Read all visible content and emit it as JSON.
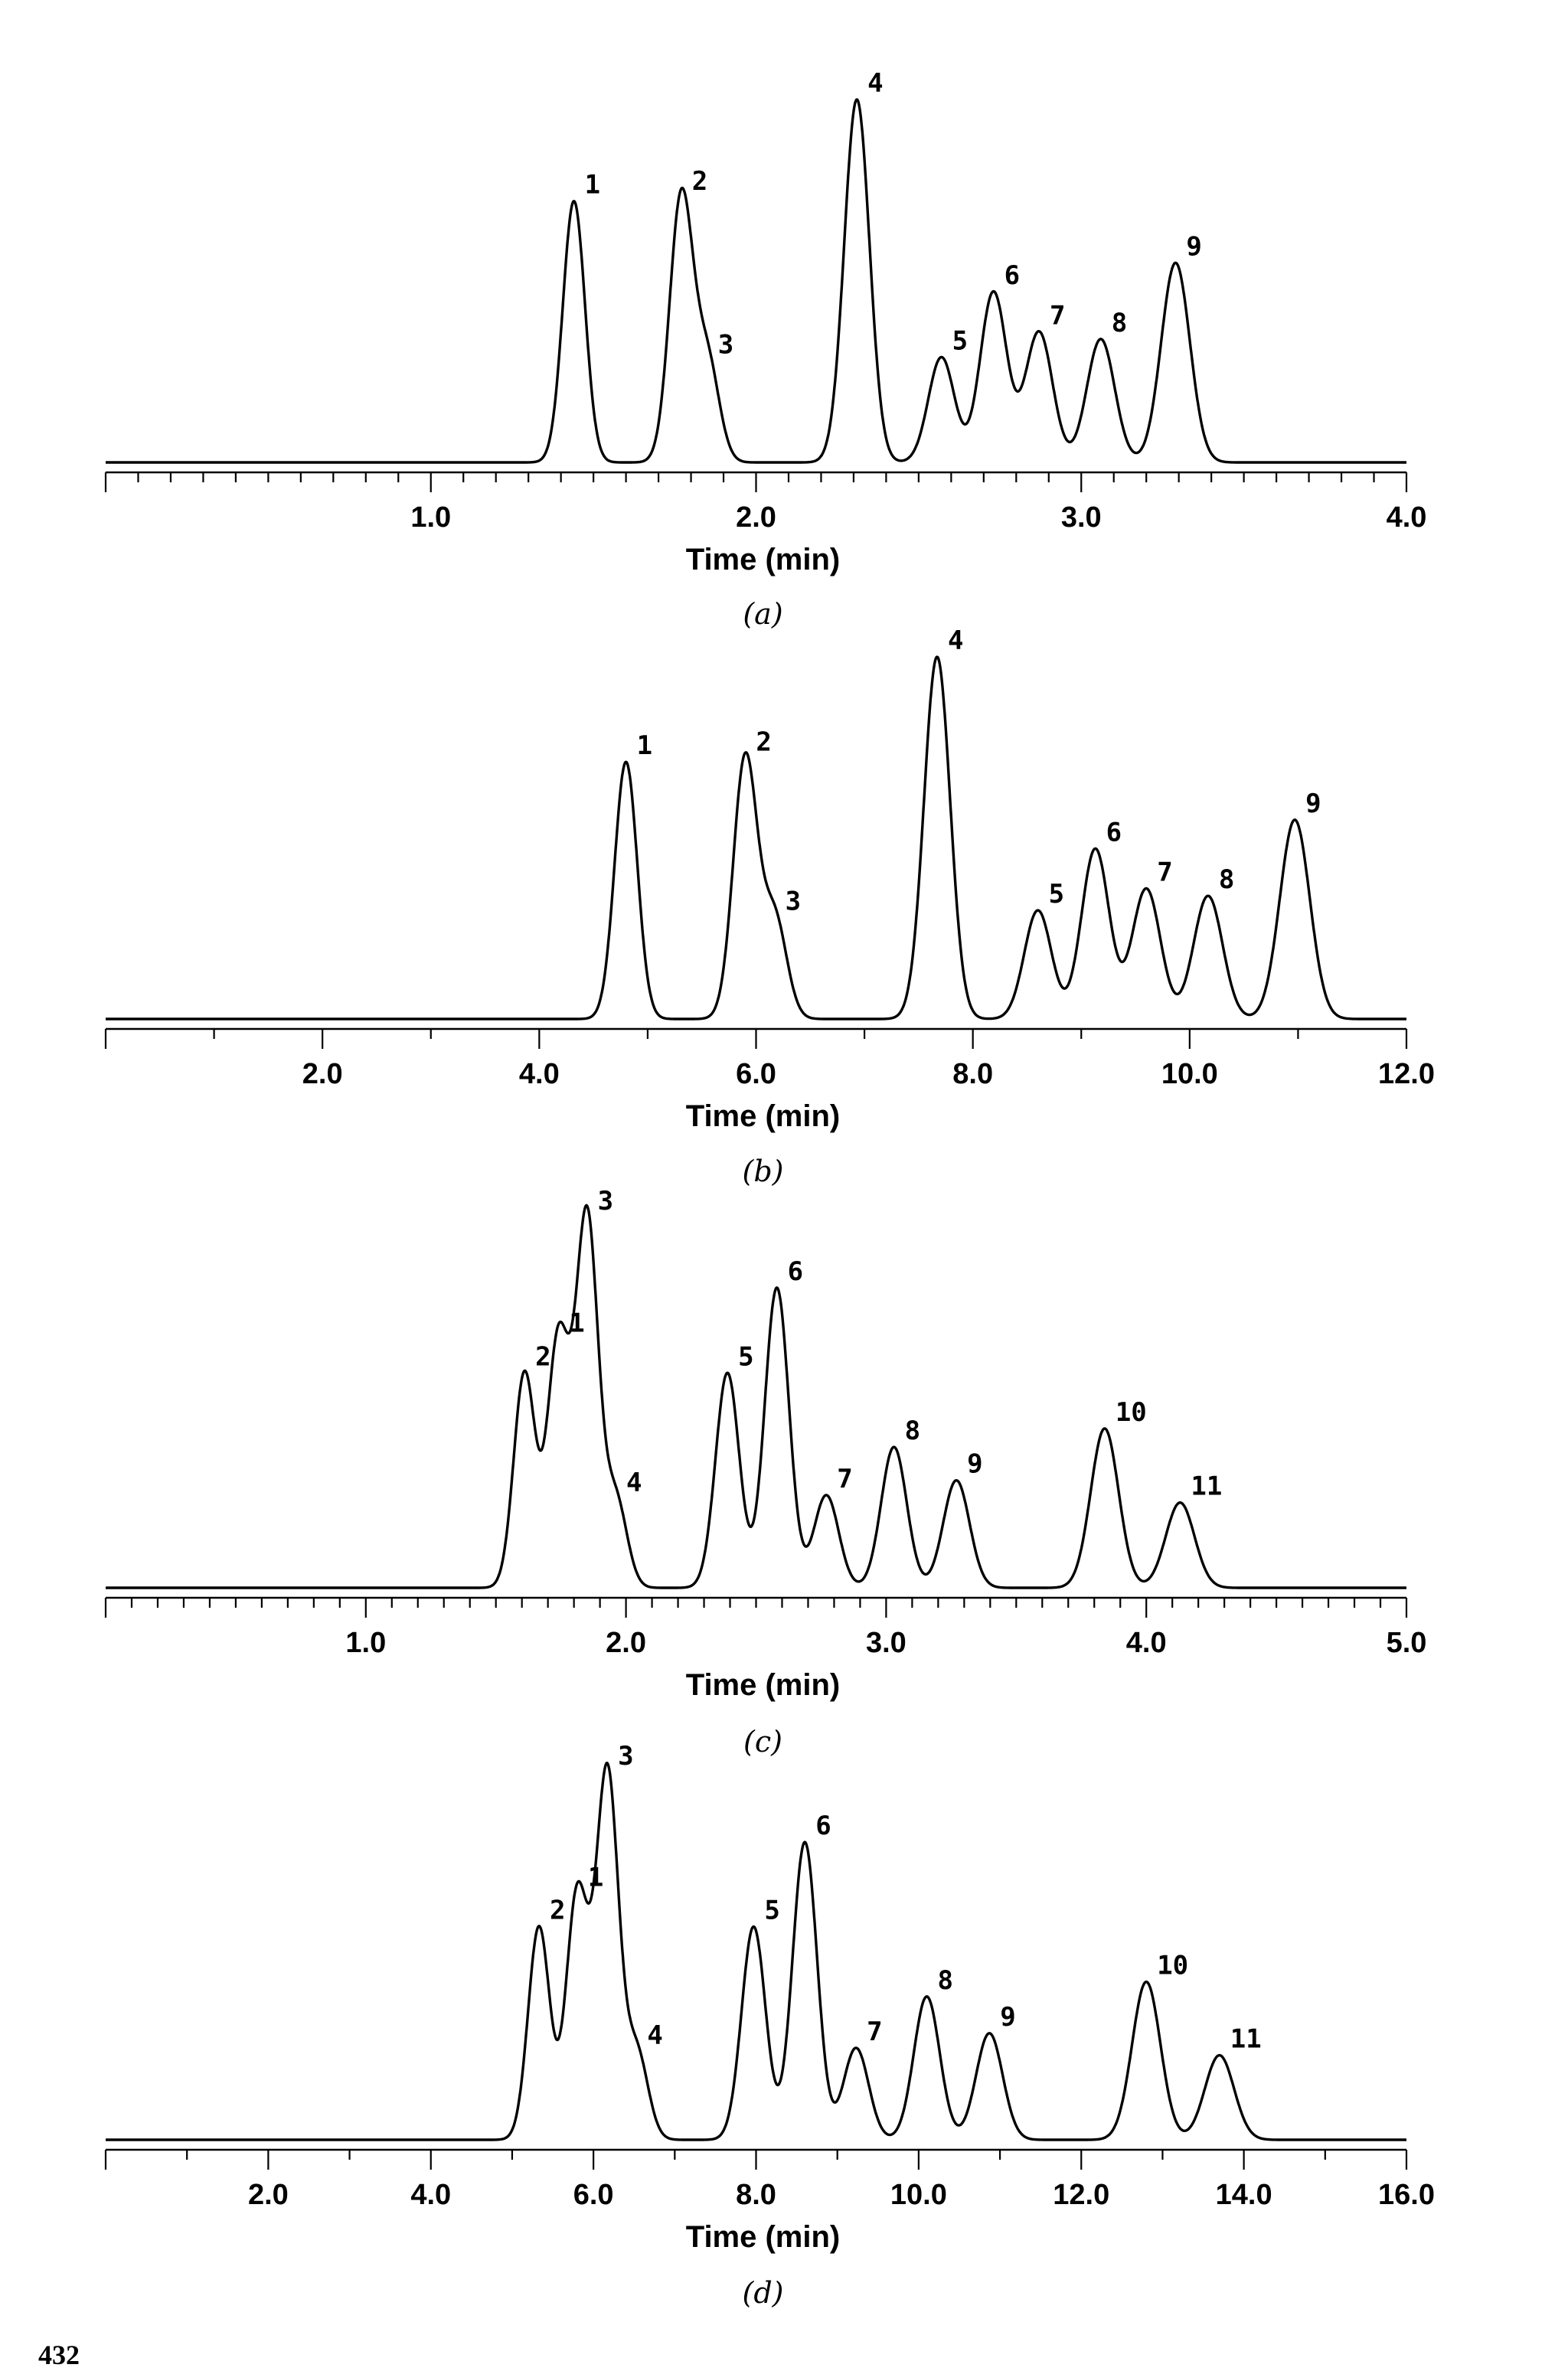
{
  "chart_data": [
    {
      "type": "line",
      "panel": "a",
      "caption": "(a)",
      "xlabel": "Time (min)",
      "ylabel": "",
      "xlim": [
        0,
        4.0
      ],
      "major_ticks": [
        0,
        1.0,
        2.0,
        3.0,
        4.0
      ],
      "tick_labels": [
        "1.0",
        "2.0",
        "3.0",
        "4.0"
      ],
      "minor_step": 0.1,
      "grid": false,
      "peaks": [
        {
          "label": "1",
          "time": 1.44,
          "height": 0.72
        },
        {
          "label": "2",
          "time": 1.77,
          "height": 0.73
        },
        {
          "label": "3",
          "time": 1.85,
          "height": 0.28
        },
        {
          "label": "4",
          "time": 2.31,
          "height": 1.0
        },
        {
          "label": "5",
          "time": 2.57,
          "height": 0.29
        },
        {
          "label": "6",
          "time": 2.73,
          "height": 0.47
        },
        {
          "label": "7",
          "time": 2.87,
          "height": 0.36
        },
        {
          "label": "8",
          "time": 3.06,
          "height": 0.34
        },
        {
          "label": "9",
          "time": 3.29,
          "height": 0.55
        }
      ]
    },
    {
      "type": "line",
      "panel": "b",
      "caption": "(b)",
      "xlabel": "Time (min)",
      "ylabel": "",
      "xlim": [
        0,
        12.0
      ],
      "major_ticks": [
        0,
        2.0,
        4.0,
        6.0,
        8.0,
        10.0,
        12.0
      ],
      "tick_labels": [
        "2.0",
        "4.0",
        "6.0",
        "8.0",
        "10.0",
        "12.0"
      ],
      "minor_step": 1.0,
      "grid": false,
      "peaks": [
        {
          "label": "1",
          "time": 4.8,
          "height": 0.71
        },
        {
          "label": "2",
          "time": 5.9,
          "height": 0.72
        },
        {
          "label": "3",
          "time": 6.17,
          "height": 0.28
        },
        {
          "label": "4",
          "time": 7.67,
          "height": 1.0
        },
        {
          "label": "5",
          "time": 8.6,
          "height": 0.3
        },
        {
          "label": "6",
          "time": 9.13,
          "height": 0.47
        },
        {
          "label": "7",
          "time": 9.6,
          "height": 0.36
        },
        {
          "label": "8",
          "time": 10.17,
          "height": 0.34
        },
        {
          "label": "9",
          "time": 10.97,
          "height": 0.55
        }
      ]
    },
    {
      "type": "line",
      "panel": "c",
      "caption": "(c)",
      "xlabel": "Time (min)",
      "ylabel": "",
      "xlim": [
        0,
        5.0
      ],
      "major_ticks": [
        0,
        1.0,
        2.0,
        3.0,
        4.0,
        5.0
      ],
      "tick_labels": [
        "1.0",
        "2.0",
        "3.0",
        "4.0",
        "5.0"
      ],
      "minor_step": 0.1,
      "grid": false,
      "peaks": [
        {
          "label": "2",
          "time": 1.61,
          "height": 0.58
        },
        {
          "label": "1",
          "time": 1.74,
          "height": 0.67
        },
        {
          "label": "3",
          "time": 1.85,
          "height": 1.0
        },
        {
          "label": "4",
          "time": 1.96,
          "height": 0.24
        },
        {
          "label": "5",
          "time": 2.39,
          "height": 0.58
        },
        {
          "label": "6",
          "time": 2.58,
          "height": 0.81
        },
        {
          "label": "7",
          "time": 2.77,
          "height": 0.25
        },
        {
          "label": "8",
          "time": 3.03,
          "height": 0.38
        },
        {
          "label": "9",
          "time": 3.27,
          "height": 0.29
        },
        {
          "label": "10",
          "time": 3.84,
          "height": 0.43
        },
        {
          "label": "11",
          "time": 4.13,
          "height": 0.23
        }
      ]
    },
    {
      "type": "line",
      "panel": "d",
      "caption": "(d)",
      "xlabel": "Time (min)",
      "ylabel": "",
      "xlim": [
        0,
        16.0
      ],
      "major_ticks": [
        0,
        2.0,
        4.0,
        6.0,
        8.0,
        10.0,
        12.0,
        14.0,
        16.0
      ],
      "tick_labels": [
        "2.0",
        "4.0",
        "6.0",
        "8.0",
        "10.0",
        "12.0",
        "14.0",
        "16.0"
      ],
      "minor_step": 1.0,
      "grid": false,
      "peaks": [
        {
          "label": "2",
          "time": 5.33,
          "height": 0.58
        },
        {
          "label": "1",
          "time": 5.8,
          "height": 0.67
        },
        {
          "label": "3",
          "time": 6.17,
          "height": 1.0
        },
        {
          "label": "4",
          "time": 6.53,
          "height": 0.24
        },
        {
          "label": "5",
          "time": 7.97,
          "height": 0.58
        },
        {
          "label": "6",
          "time": 8.6,
          "height": 0.81
        },
        {
          "label": "7",
          "time": 9.23,
          "height": 0.25
        },
        {
          "label": "8",
          "time": 10.1,
          "height": 0.39
        },
        {
          "label": "9",
          "time": 10.87,
          "height": 0.29
        },
        {
          "label": "10",
          "time": 12.8,
          "height": 0.43
        },
        {
          "label": "11",
          "time": 13.7,
          "height": 0.23
        }
      ]
    }
  ],
  "footer": {
    "page_number": "432"
  }
}
